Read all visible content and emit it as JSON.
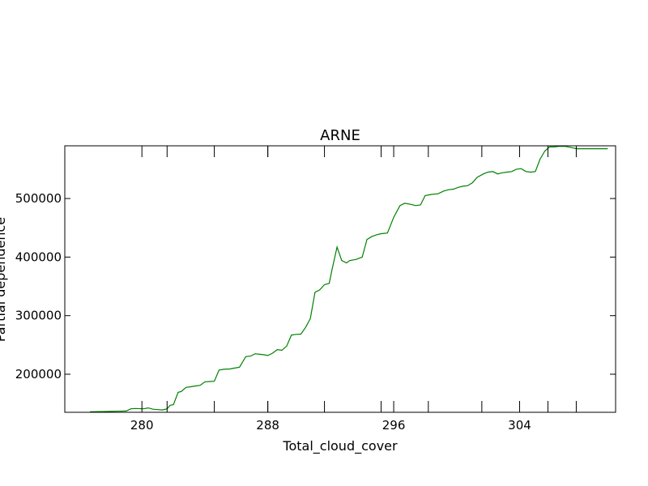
{
  "chart_data": {
    "type": "line",
    "title": "ARNE",
    "xlabel": "Total_cloud_cover",
    "ylabel": "Partial dependence",
    "xlim": [
      275.1,
      310.1
    ],
    "ylim": [
      135000,
      590000
    ],
    "x_ticks": [
      280,
      288,
      296,
      304
    ],
    "x_tick_labels": [
      "280",
      "288",
      "296",
      "304"
    ],
    "x_minor_ticks": [
      281.6,
      284.6,
      288.0,
      291.6,
      295.2,
      298.2,
      301.6,
      305.8,
      307.6
    ],
    "y_ticks": [
      200000,
      300000,
      400000,
      500000
    ],
    "y_tick_labels": [
      "200000",
      "300000",
      "400000",
      "500000"
    ],
    "grid": false,
    "series": [
      {
        "color": "#008000",
        "x": [
          276.7,
          277.4,
          278.0,
          278.5,
          279.0,
          279.3,
          279.6,
          280.1,
          280.4,
          280.7,
          281.0,
          281.3,
          281.6,
          281.8,
          282.0,
          282.3,
          282.5,
          282.8,
          283.1,
          283.4,
          283.7,
          284.0,
          284.3,
          284.6,
          284.9,
          285.2,
          285.6,
          285.9,
          286.2,
          286.6,
          286.9,
          287.2,
          287.5,
          287.8,
          288.0,
          288.3,
          288.6,
          288.9,
          289.2,
          289.5,
          289.8,
          290.1,
          290.4,
          290.7,
          291.0,
          291.3,
          291.6,
          291.9,
          292.1,
          292.4,
          292.7,
          293.0,
          293.2,
          293.6,
          294.0,
          294.3,
          294.6,
          294.9,
          295.2,
          295.6,
          296.0,
          296.4,
          296.7,
          297.1,
          297.4,
          297.7,
          298.0,
          298.4,
          298.8,
          299.2,
          299.5,
          299.8,
          300.1,
          300.4,
          300.7,
          301.0,
          301.3,
          301.7,
          302.0,
          302.3,
          302.6,
          302.9,
          303.2,
          303.5,
          303.8,
          304.1,
          304.4,
          304.7,
          305.0,
          305.3,
          305.6,
          305.9,
          306.2,
          306.5,
          306.9,
          307.3,
          307.6,
          307.8,
          308.3,
          308.8,
          309.3,
          309.6
        ],
        "y": [
          136000,
          136300,
          136500,
          136800,
          137200,
          141000,
          141500,
          141000,
          142500,
          140200,
          139500,
          139000,
          141000,
          147000,
          148000,
          169000,
          170500,
          177500,
          178500,
          180000,
          181000,
          187000,
          187500,
          188000,
          207000,
          208500,
          209000,
          210500,
          212000,
          230000,
          231000,
          235000,
          234000,
          233000,
          232000,
          236000,
          242000,
          241000,
          248000,
          267000,
          268000,
          268500,
          280000,
          295000,
          340000,
          344000,
          353000,
          355000,
          381000,
          417000,
          394000,
          390000,
          394000,
          396000,
          400000,
          430000,
          435000,
          438000,
          440000,
          441000,
          468000,
          488000,
          492000,
          490000,
          488000,
          489000,
          505000,
          507000,
          508000,
          513000,
          515000,
          516000,
          519000,
          521000,
          522000,
          527000,
          536000,
          542000,
          545000,
          546000,
          542000,
          544000,
          545000,
          546000,
          550000,
          551000,
          546000,
          545000,
          546000,
          567000,
          581000,
          588000,
          588000,
          589000,
          589000,
          587000,
          585000,
          585000,
          585000,
          585000,
          585000,
          585000
        ]
      }
    ]
  }
}
